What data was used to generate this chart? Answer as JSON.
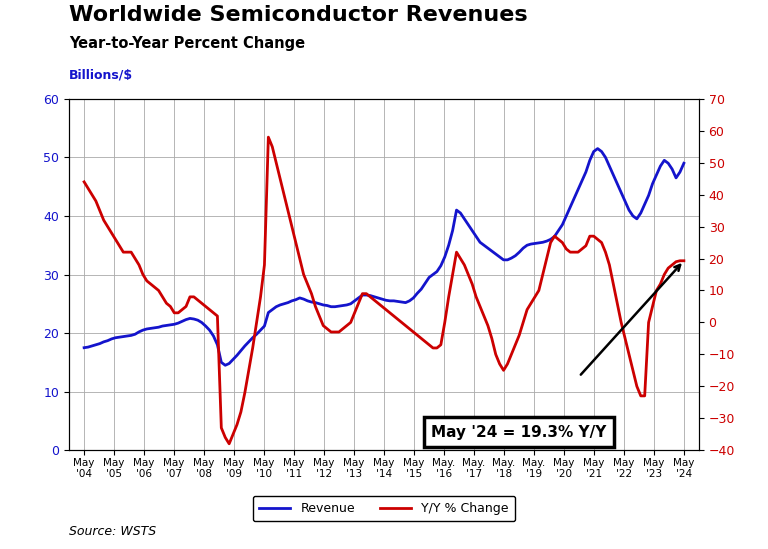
{
  "title": "Worldwide Semiconductor Revenues",
  "subtitle": "Year-to-Year Percent Change",
  "ylabel_left": "Billions/$",
  "source": "Source: WSTS",
  "annotation": "May '24 = 19.3% Y/Y",
  "x_labels": [
    "May\n'04",
    "May\n'05",
    "May\n'06",
    "May\n'07",
    "May\n'08",
    "May\n'09",
    "May\n'10",
    "May\n'11",
    "May\n'12",
    "May\n'13",
    "May\n'14",
    "May\n'15",
    "May.\n'16",
    "May.\n'17",
    "May.\n'18",
    "May.\n'19",
    "May\n'20",
    "May\n'21",
    "May\n'22",
    "May\n'23",
    "May\n'24"
  ],
  "revenue_color": "#1414CC",
  "yoy_color": "#CC0000",
  "background_color": "#FFFFFF",
  "grid_color": "#AAAAAA",
  "ylim_left": [
    0,
    60
  ],
  "ylim_right": [
    -40,
    70
  ],
  "yticks_left": [
    0,
    10,
    20,
    30,
    40,
    50,
    60
  ],
  "yticks_right": [
    -40,
    -30,
    -20,
    -10,
    0,
    10,
    20,
    30,
    40,
    50,
    60,
    70
  ],
  "revenue_monthly": [
    17.5,
    17.6,
    17.8,
    18.0,
    18.2,
    18.5,
    18.7,
    19.0,
    19.2,
    19.3,
    19.4,
    19.5,
    19.6,
    19.8,
    20.2,
    20.5,
    20.7,
    20.8,
    20.9,
    21.0,
    21.2,
    21.3,
    21.4,
    21.5,
    21.7,
    22.0,
    22.3,
    22.5,
    22.4,
    22.2,
    21.8,
    21.2,
    20.5,
    19.5,
    18.0,
    15.0,
    14.5,
    14.8,
    15.5,
    16.2,
    17.0,
    17.8,
    18.5,
    19.2,
    19.8,
    20.5,
    21.2,
    23.5,
    24.0,
    24.5,
    24.8,
    25.0,
    25.2,
    25.5,
    25.7,
    26.0,
    25.8,
    25.5,
    25.3,
    25.2,
    25.0,
    24.8,
    24.7,
    24.5,
    24.5,
    24.6,
    24.7,
    24.8,
    25.0,
    25.5,
    26.0,
    26.5,
    26.5,
    26.4,
    26.2,
    26.0,
    25.8,
    25.6,
    25.5,
    25.5,
    25.4,
    25.3,
    25.2,
    25.5,
    26.0,
    26.8,
    27.5,
    28.5,
    29.5,
    30.0,
    30.5,
    31.5,
    33.0,
    35.0,
    37.5,
    41.0,
    40.5,
    39.5,
    38.5,
    37.5,
    36.5,
    35.5,
    35.0,
    34.5,
    34.0,
    33.5,
    33.0,
    32.5,
    32.5,
    32.8,
    33.2,
    33.8,
    34.5,
    35.0,
    35.2,
    35.3,
    35.4,
    35.5,
    35.7,
    36.0,
    36.5,
    37.5,
    38.5,
    40.0,
    41.5,
    43.0,
    44.5,
    46.0,
    47.5,
    49.5,
    51.0,
    51.5,
    51.0,
    50.0,
    48.5,
    47.0,
    45.5,
    44.0,
    42.5,
    41.0,
    40.0,
    39.5,
    40.5,
    42.0,
    43.5,
    45.5,
    47.0,
    48.5,
    49.5,
    49.0,
    48.0,
    46.5,
    47.5,
    49.0
  ],
  "yoy_monthly": [
    44,
    42,
    40,
    38,
    35,
    32,
    30,
    28,
    26,
    24,
    22,
    22,
    22,
    20,
    18,
    15,
    13,
    12,
    11,
    10,
    8,
    6,
    5,
    3,
    3,
    4,
    5,
    8,
    8,
    7,
    6,
    5,
    4,
    3,
    2,
    -33,
    -36,
    -38,
    -35,
    -32,
    -28,
    -22,
    -15,
    -8,
    0,
    8,
    18,
    58,
    55,
    50,
    45,
    40,
    35,
    30,
    25,
    20,
    15,
    12,
    9,
    5,
    2,
    -1,
    -2,
    -3,
    -3,
    -3,
    -2,
    -1,
    0,
    3,
    6,
    9,
    9,
    8,
    7,
    6,
    5,
    4,
    3,
    2,
    1,
    0,
    -1,
    -2,
    -3,
    -4,
    -5,
    -6,
    -7,
    -8,
    -8,
    -7,
    0,
    8,
    15,
    22,
    20,
    18,
    15,
    12,
    8,
    5,
    2,
    -1,
    -5,
    -10,
    -13,
    -15,
    -13,
    -10,
    -7,
    -4,
    0,
    4,
    6,
    8,
    10,
    15,
    20,
    25,
    27,
    26,
    25,
    23,
    22,
    22,
    22,
    23,
    24,
    27,
    27,
    26,
    25,
    22,
    18,
    12,
    6,
    0,
    -5,
    -10,
    -15,
    -20,
    -23,
    -23,
    0,
    5,
    10,
    12,
    15,
    17,
    18,
    19,
    19.3,
    19.3
  ]
}
